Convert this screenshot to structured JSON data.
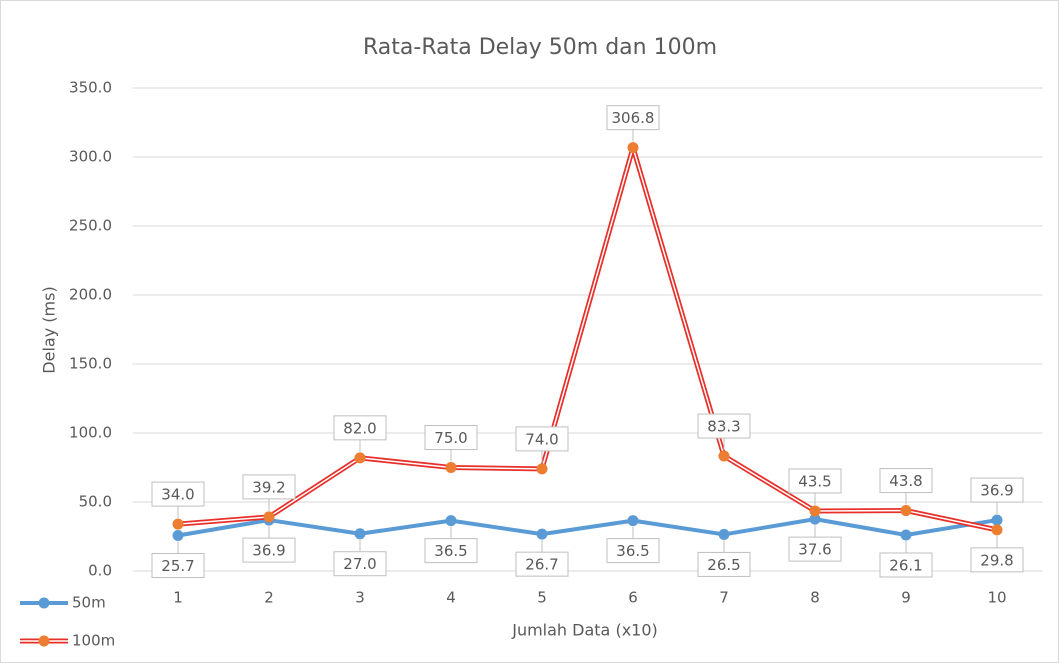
{
  "chart_data": {
    "type": "line",
    "title": "Rata-Rata Delay 50m dan 100m",
    "x_label": "Jumlah Data (x10)",
    "y_label": "Delay (ms)",
    "categories": [
      "1",
      "2",
      "3",
      "4",
      "5",
      "6",
      "7",
      "8",
      "9",
      "10"
    ],
    "series": [
      {
        "name": "50m",
        "color": "#5b9bd5",
        "values": [
          25.7,
          36.9,
          27,
          36.5,
          26.7,
          36.5,
          26.5,
          37.6,
          26.1,
          36.9
        ],
        "value_labels": [
          "25.7",
          "36.9",
          "27.0",
          "36.5",
          "26.7",
          "36.5",
          "26.5",
          "37.6",
          "26.1",
          "36.9"
        ]
      },
      {
        "name": "100m",
        "color": "#e8302a",
        "marker_color": "#ed7d31",
        "values": [
          34,
          39.2,
          82,
          75,
          74,
          306.8,
          83.3,
          43.5,
          43.8,
          29.8
        ],
        "value_labels": [
          "34.0",
          "39.2",
          "82.0",
          "75.0",
          "74.0",
          "306.8",
          "83.3",
          "43.5",
          "43.8",
          "29.8"
        ]
      }
    ],
    "ylim": [
      0,
      350
    ],
    "yticks": [
      {
        "value": 0,
        "label": "0.0"
      },
      {
        "value": 50,
        "label": "50.0"
      },
      {
        "value": 100,
        "label": "100.0"
      },
      {
        "value": 150,
        "label": "150.0"
      },
      {
        "value": 200,
        "label": "200.0"
      },
      {
        "value": 250,
        "label": "250.0"
      },
      {
        "value": 300,
        "label": "300.0"
      },
      {
        "value": 350,
        "label": "350.0"
      }
    ],
    "grid": true,
    "legend": "bottom-left"
  }
}
